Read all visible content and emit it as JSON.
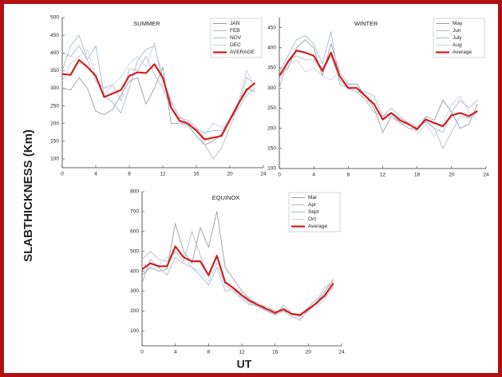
{
  "figure": {
    "ylabel": "SLABTHICKNESS (Km)",
    "xlabel": "UT"
  },
  "chart_data": [
    {
      "type": "line",
      "title": "SUMMER",
      "legend": "upper right",
      "grid": false,
      "x": [
        0,
        1,
        2,
        3,
        4,
        5,
        6,
        7,
        8,
        9,
        10,
        11,
        12,
        13,
        14,
        15,
        16,
        17,
        18,
        19,
        20,
        21,
        22,
        23
      ],
      "xlim": [
        0,
        24
      ],
      "xticks": [
        0,
        4,
        8,
        12,
        16,
        20,
        24
      ],
      "ylim": [
        75,
        500
      ],
      "yticks": [
        100,
        150,
        200,
        250,
        300,
        350,
        400,
        450,
        500
      ],
      "series": [
        {
          "name": "JAN",
          "color": "#9a9aa8",
          "values": [
            300,
            295,
            330,
            300,
            235,
            225,
            240,
            280,
            320,
            330,
            255,
            300,
            360,
            200,
            200,
            195,
            165,
            140,
            150,
            170,
            215,
            260,
            300,
            290
          ]
        },
        {
          "name": "FEB",
          "color": "#b8b8c8",
          "values": [
            400,
            390,
            420,
            380,
            320,
            300,
            310,
            265,
            355,
            350,
            390,
            340,
            300,
            240,
            215,
            210,
            190,
            140,
            100,
            130,
            190,
            250,
            330,
            310
          ]
        },
        {
          "name": "NOV",
          "color": "#a8b8d0",
          "values": [
            350,
            420,
            450,
            380,
            420,
            280,
            260,
            230,
            300,
            380,
            410,
            420,
            330,
            260,
            220,
            200,
            185,
            175,
            180,
            180,
            210,
            240,
            280,
            300
          ]
        },
        {
          "name": "DEC",
          "color": "#c8d0e0",
          "values": [
            320,
            370,
            390,
            410,
            330,
            280,
            310,
            330,
            370,
            390,
            360,
            430,
            300,
            270,
            200,
            205,
            180,
            170,
            200,
            190,
            210,
            260,
            350,
            300
          ]
        },
        {
          "name": "AVERAGE",
          "color": "#d02020",
          "values": [
            340,
            338,
            380,
            360,
            335,
            275,
            285,
            295,
            335,
            345,
            343,
            368,
            330,
            245,
            208,
            200,
            180,
            155,
            160,
            165,
            210,
            255,
            295,
            315
          ]
        }
      ]
    },
    {
      "type": "line",
      "title": "WINTER",
      "legend": "upper right",
      "grid": false,
      "x": [
        0,
        1,
        2,
        3,
        4,
        5,
        6,
        7,
        8,
        9,
        10,
        11,
        12,
        13,
        14,
        15,
        16,
        17,
        18,
        19,
        20,
        21,
        22,
        23
      ],
      "xlim": [
        0,
        24
      ],
      "xticks": [
        0,
        4,
        8,
        12,
        16,
        20,
        24
      ],
      "ylim": [
        100,
        475
      ],
      "yticks": [
        100,
        150,
        200,
        250,
        300,
        350,
        400,
        450
      ],
      "series": [
        {
          "name": "May",
          "color": "#9a9aa8",
          "values": [
            330,
            350,
            400,
            420,
            400,
            330,
            410,
            340,
            310,
            310,
            280,
            250,
            190,
            230,
            215,
            200,
            195,
            230,
            220,
            270,
            240,
            200,
            210,
            260
          ]
        },
        {
          "name": "Jun",
          "color": "#b8b8c8",
          "values": [
            300,
            370,
            380,
            370,
            370,
            340,
            380,
            320,
            300,
            290,
            270,
            240,
            230,
            240,
            225,
            215,
            205,
            215,
            200,
            150,
            190,
            230,
            225,
            240
          ]
        },
        {
          "name": "July",
          "color": "#a8b8d0",
          "values": [
            340,
            380,
            420,
            430,
            410,
            360,
            440,
            310,
            300,
            290,
            290,
            280,
            230,
            250,
            230,
            210,
            200,
            220,
            200,
            190,
            240,
            270,
            250,
            270
          ]
        },
        {
          "name": "Aug",
          "color": "#c8d0e0",
          "values": [
            320,
            360,
            370,
            340,
            350,
            330,
            320,
            340,
            310,
            300,
            270,
            260,
            220,
            230,
            210,
            215,
            185,
            210,
            180,
            210,
            260,
            280,
            240,
            220
          ]
        },
        {
          "name": "Average",
          "color": "#d02020",
          "values": [
            330,
            365,
            393,
            388,
            380,
            343,
            388,
            330,
            300,
            300,
            280,
            260,
            222,
            238,
            220,
            210,
            198,
            222,
            213,
            205,
            232,
            238,
            230,
            243
          ]
        }
      ]
    },
    {
      "type": "line",
      "title": "EQUINOX",
      "legend": "upper right",
      "grid": false,
      "x": [
        0,
        1,
        2,
        3,
        4,
        5,
        6,
        7,
        8,
        9,
        10,
        11,
        12,
        13,
        14,
        15,
        16,
        17,
        18,
        19,
        20,
        21,
        22,
        23
      ],
      "xlim": [
        0,
        24
      ],
      "xticks": [
        0,
        4,
        8,
        12,
        16,
        20,
        24
      ],
      "ylim": [
        25,
        800
      ],
      "yticks": [
        100,
        200,
        300,
        400,
        500,
        600,
        700,
        800
      ],
      "series": [
        {
          "name": "Mar",
          "color": "#9a9aa8",
          "values": [
            380,
            420,
            400,
            410,
            640,
            500,
            440,
            620,
            520,
            700,
            420,
            360,
            300,
            260,
            230,
            220,
            200,
            200,
            190,
            180,
            200,
            240,
            300,
            360
          ]
        },
        {
          "name": "Apr",
          "color": "#b8b8c8",
          "values": [
            460,
            500,
            460,
            450,
            500,
            450,
            600,
            480,
            370,
            480,
            330,
            300,
            260,
            230,
            230,
            200,
            180,
            200,
            170,
            160,
            200,
            250,
            320,
            350
          ]
        },
        {
          "name": "Sept",
          "color": "#a8b8d0",
          "values": [
            340,
            460,
            420,
            380,
            470,
            440,
            420,
            380,
            330,
            420,
            300,
            310,
            270,
            240,
            220,
            200,
            180,
            230,
            190,
            170,
            220,
            260,
            270,
            320
          ]
        },
        {
          "name": "Oct",
          "color": "#c8d0e0",
          "values": [
            440,
            410,
            430,
            470,
            490,
            480,
            420,
            400,
            350,
            440,
            330,
            300,
            280,
            260,
            240,
            220,
            190,
            210,
            190,
            150,
            210,
            220,
            260,
            330
          ]
        },
        {
          "name": "Average",
          "color": "#d02020",
          "values": [
            410,
            440,
            425,
            425,
            525,
            470,
            450,
            450,
            380,
            478,
            345,
            315,
            280,
            250,
            230,
            210,
            190,
            210,
            185,
            180,
            210,
            240,
            280,
            340
          ]
        }
      ]
    }
  ]
}
